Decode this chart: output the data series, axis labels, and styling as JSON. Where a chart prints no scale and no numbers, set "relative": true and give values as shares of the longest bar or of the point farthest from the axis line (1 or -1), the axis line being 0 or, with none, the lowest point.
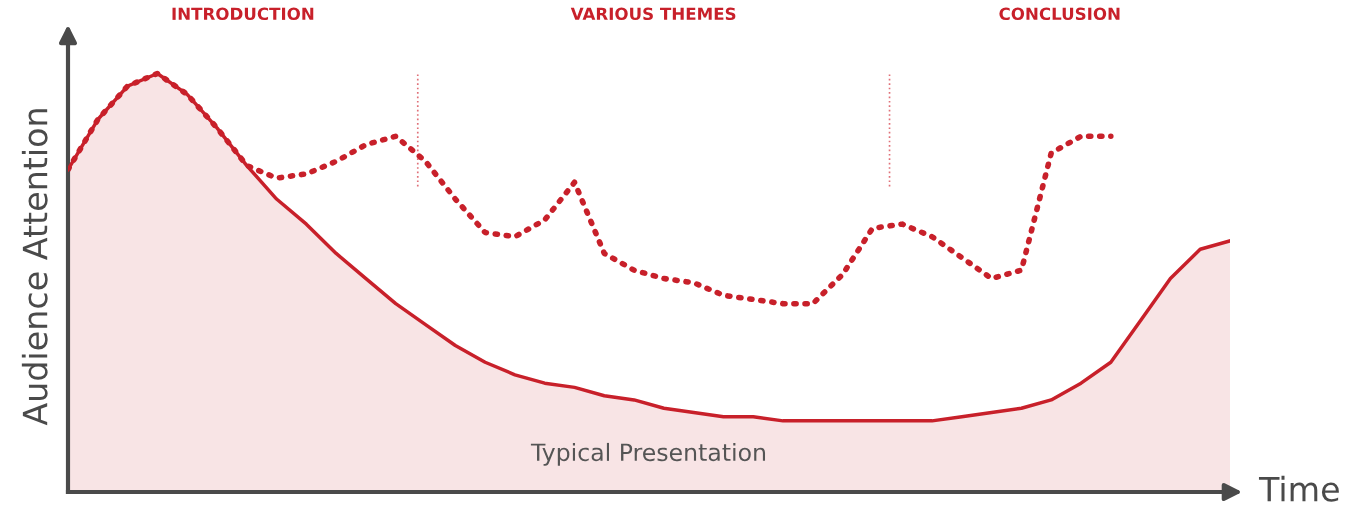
{
  "chart_data": {
    "type": "line",
    "relative": true,
    "xlabel": "Time",
    "ylabel": "Audience Attention",
    "categories": [
      null,
      null,
      null,
      null,
      null,
      null,
      null,
      null,
      null,
      null,
      null,
      null,
      null,
      null,
      null,
      null,
      null,
      null,
      null,
      null,
      null,
      null,
      null,
      null,
      null,
      null,
      null,
      null,
      null,
      null,
      null,
      null,
      null,
      null,
      null,
      null,
      null,
      null,
      null,
      null
    ],
    "series": [
      {
        "name": "Typical Presentation",
        "type": "area",
        "color": "#c8202a",
        "line_style": "solid",
        "values": [
          0.77,
          0.89,
          0.97,
          1.0,
          0.95,
          0.87,
          0.78,
          0.7,
          0.64,
          0.57,
          0.51,
          0.45,
          0.4,
          0.35,
          0.31,
          0.28,
          0.26,
          0.25,
          0.23,
          0.22,
          0.2,
          0.19,
          0.18,
          0.18,
          0.17,
          0.17,
          0.17,
          0.17,
          0.17,
          0.17,
          0.18,
          0.19,
          0.2,
          0.22,
          0.26,
          0.31,
          0.41,
          0.51,
          0.58,
          0.6
        ]
      },
      {
        "color": "#c8202a",
        "line_style": "dotted",
        "values": [
          0.77,
          0.89,
          0.97,
          1.0,
          0.95,
          0.87,
          0.78,
          0.75,
          0.76,
          0.79,
          0.83,
          0.85,
          0.79,
          0.7,
          0.62,
          0.61,
          0.65,
          0.74,
          0.57,
          0.53,
          0.51,
          0.5,
          0.47,
          0.46,
          0.45,
          0.45,
          0.52,
          0.63,
          0.64,
          0.61,
          0.56,
          0.51,
          0.53,
          0.81,
          0.85,
          0.85,
          null,
          null,
          null,
          null
        ]
      }
    ],
    "annotations": [
      "INTRODUCTION",
      "VARIOUS THEMES",
      "CONCLUSION"
    ],
    "marker": "none"
  }
}
